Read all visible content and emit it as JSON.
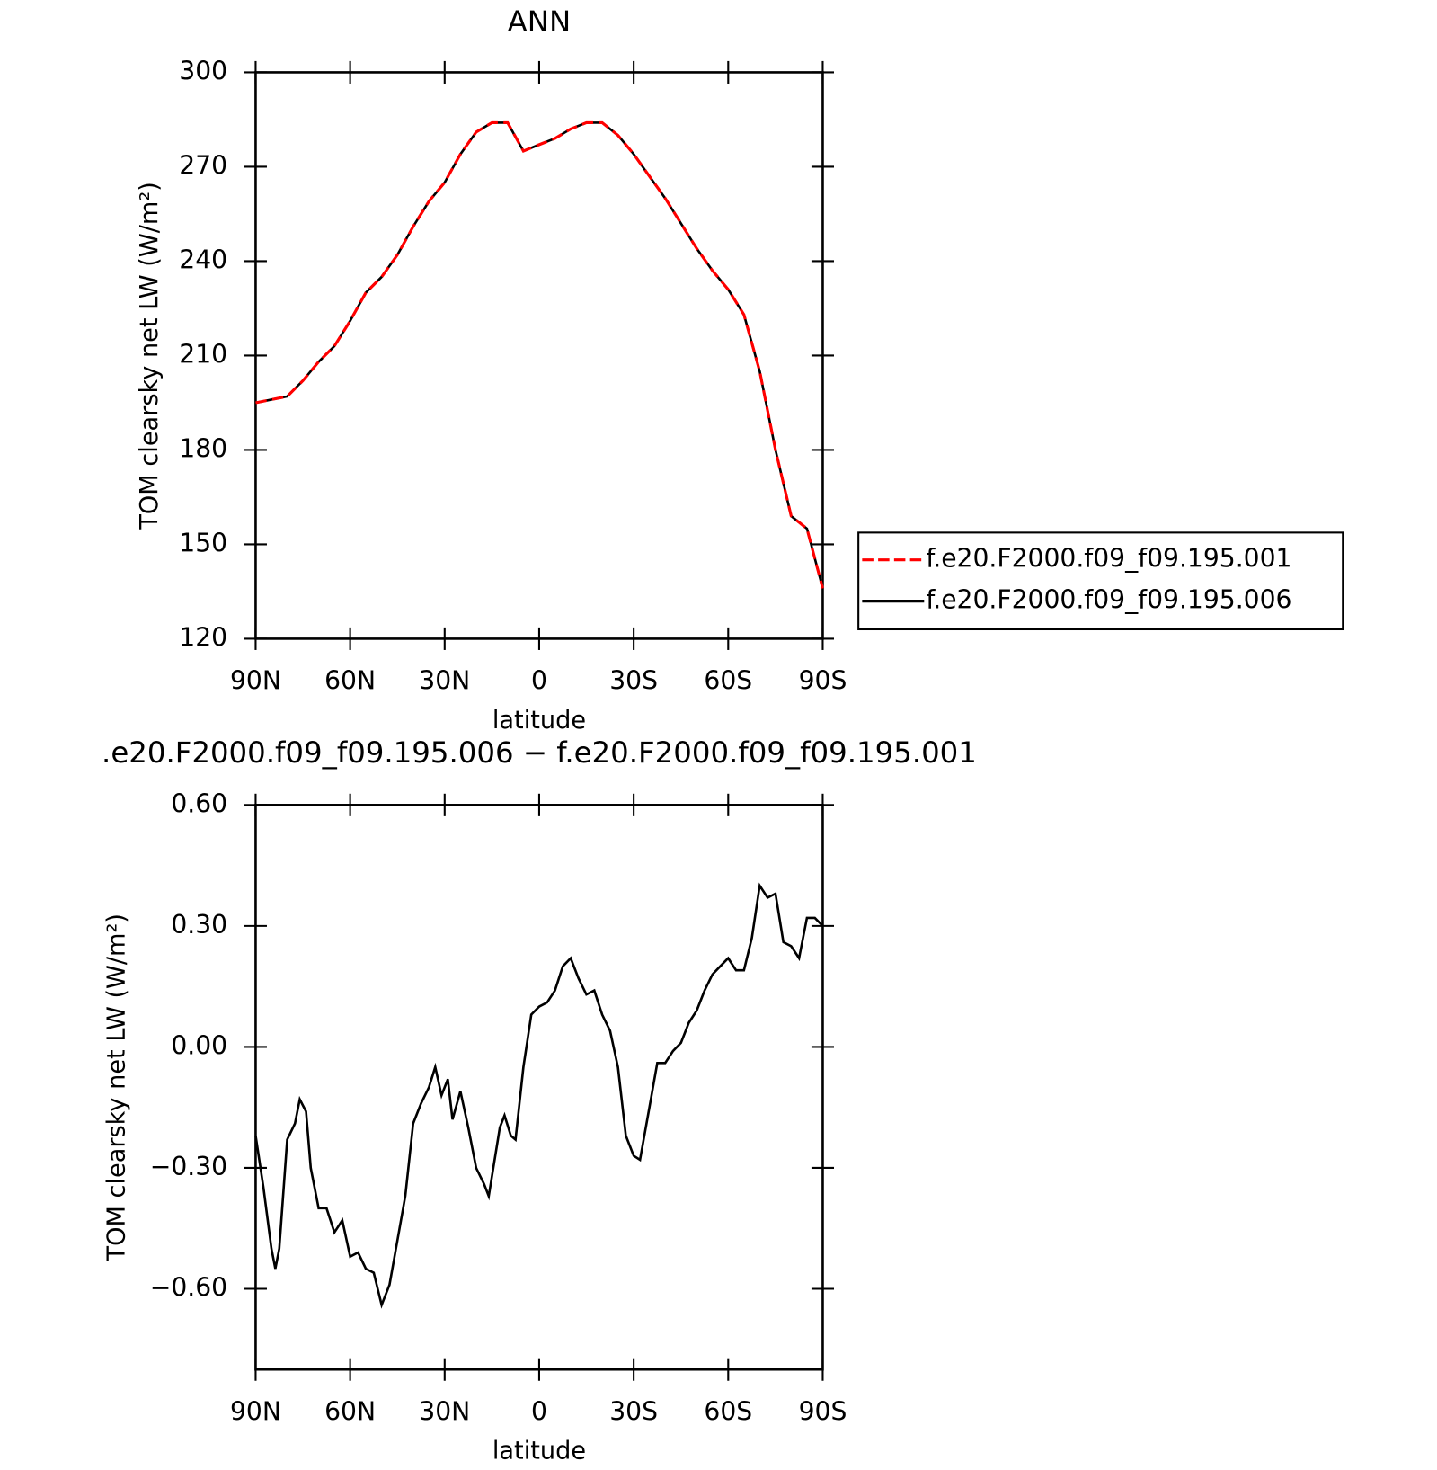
{
  "chart_data": [
    {
      "type": "line",
      "title": "ANN",
      "x_label": "latitude",
      "y_label": "TOM clearsky net LW (W/m²)",
      "xlim": [
        90,
        -90
      ],
      "xticks": [
        {
          "value": 90,
          "label": "90N"
        },
        {
          "value": 60,
          "label": "60N"
        },
        {
          "value": 30,
          "label": "30N"
        },
        0,
        {
          "value": -30,
          "label": "30S"
        },
        {
          "value": -60,
          "label": "60S"
        },
        {
          "value": -90,
          "label": "90S"
        }
      ],
      "ylim": [
        120,
        300
      ],
      "yticks": [
        120,
        150,
        180,
        210,
        240,
        270,
        300
      ],
      "legend": "right",
      "x": [
        90,
        85,
        80,
        75,
        70,
        65,
        60,
        55,
        50,
        45,
        40,
        35,
        30,
        25,
        20,
        15,
        10,
        5,
        0,
        -5,
        -10,
        -15,
        -20,
        -25,
        -30,
        -35,
        -40,
        -45,
        -50,
        -55,
        -60,
        -65,
        -70,
        -75,
        -80,
        -85,
        -90
      ],
      "series": [
        {
          "name": "f.e20.F2000.f09_f09.195.001",
          "color": "#ff0000",
          "linestyle": "dashed",
          "values": [
            195,
            196,
            197,
            202,
            208,
            213,
            221,
            230,
            235,
            242,
            251,
            259,
            265,
            274,
            281,
            284,
            284,
            275,
            277,
            279,
            282,
            284,
            284,
            280,
            274,
            267,
            260,
            252,
            244,
            237,
            231,
            223,
            205,
            180,
            159,
            155,
            136
          ]
        },
        {
          "name": "f.e20.F2000.f09_f09.195.006",
          "color": "#000000",
          "linestyle": "solid",
          "values": [
            195,
            196,
            197,
            202,
            208,
            213,
            221,
            230,
            235,
            242,
            251,
            259,
            265,
            274,
            281,
            284,
            284,
            275,
            277,
            279,
            282,
            284,
            284,
            280,
            274,
            267,
            260,
            252,
            244,
            237,
            231,
            223,
            205,
            180,
            159,
            155,
            136
          ]
        }
      ]
    },
    {
      "type": "line",
      "title": ".e20.F2000.f09_f09.195.006 − f.e20.F2000.f09_f09.195.001",
      "x_label": "latitude",
      "y_label": "TOM clearsky net LW (W/m²)",
      "xlim": [
        90,
        -90
      ],
      "xticks": [
        {
          "value": 90,
          "label": "90N"
        },
        {
          "value": 60,
          "label": "60N"
        },
        {
          "value": 30,
          "label": "30N"
        },
        0,
        {
          "value": -30,
          "label": "30S"
        },
        {
          "value": -60,
          "label": "60S"
        },
        {
          "value": -90,
          "label": "90S"
        }
      ],
      "ylim": [
        -0.8,
        0.6
      ],
      "yticks": [
        {
          "value": -0.6,
          "label": "−0.60"
        },
        {
          "value": -0.3,
          "label": "−0.30"
        },
        {
          "value": 0,
          "label": "0.00"
        },
        {
          "value": 0.3,
          "label": "0.30"
        },
        {
          "value": 0.6,
          "label": "0.60"
        }
      ],
      "x": [
        90,
        87.5,
        85,
        83.75,
        82.5,
        80,
        77.5,
        76,
        74,
        72.5,
        70,
        67.5,
        65,
        62.5,
        60,
        57.5,
        55,
        52.5,
        50,
        47.5,
        45,
        42.5,
        40,
        37.5,
        35,
        33,
        31,
        29,
        27.5,
        25,
        22.5,
        20,
        17.5,
        16,
        12.5,
        11,
        9,
        7.5,
        5,
        2.5,
        0,
        -2.5,
        -5,
        -7.5,
        -10,
        -12.5,
        -15,
        -17.5,
        -20,
        -22.5,
        -25,
        -27.5,
        -30,
        -32,
        -35,
        -37.5,
        -40,
        -42.5,
        -45,
        -47.5,
        -50,
        -52.5,
        -55,
        -57.5,
        -60,
        -62.5,
        -65,
        -67.5,
        -70,
        -72.5,
        -75,
        -77.5,
        -80,
        -82.5,
        -85,
        -87.5,
        -90
      ],
      "series": [
        {
          "name": "f.e20.F2000.f09_f09.195.006 − f.e20.F2000.f09_f09.195.001",
          "color": "#000000",
          "linestyle": "solid",
          "values": [
            -0.22,
            -0.35,
            -0.5,
            -0.55,
            -0.5,
            -0.23,
            -0.19,
            -0.13,
            -0.16,
            -0.3,
            -0.4,
            -0.4,
            -0.46,
            -0.43,
            -0.52,
            -0.51,
            -0.55,
            -0.56,
            -0.64,
            -0.59,
            -0.48,
            -0.37,
            -0.19,
            -0.14,
            -0.1,
            -0.05,
            -0.12,
            -0.08,
            -0.18,
            -0.11,
            -0.2,
            -0.3,
            -0.34,
            -0.37,
            -0.2,
            -0.17,
            -0.22,
            -0.23,
            -0.05,
            0.08,
            0.1,
            0.11,
            0.14,
            0.2,
            0.22,
            0.17,
            0.13,
            0.14,
            0.08,
            0.04,
            -0.05,
            -0.22,
            -0.27,
            -0.28,
            -0.15,
            -0.04,
            -0.04,
            -0.01,
            0.01,
            0.06,
            0.09,
            0.14,
            0.18,
            0.2,
            0.22,
            0.19,
            0.19,
            0.27,
            0.4,
            0.37,
            0.38,
            0.26,
            0.25,
            0.22,
            0.32,
            0.32,
            0.3
          ]
        }
      ]
    }
  ]
}
